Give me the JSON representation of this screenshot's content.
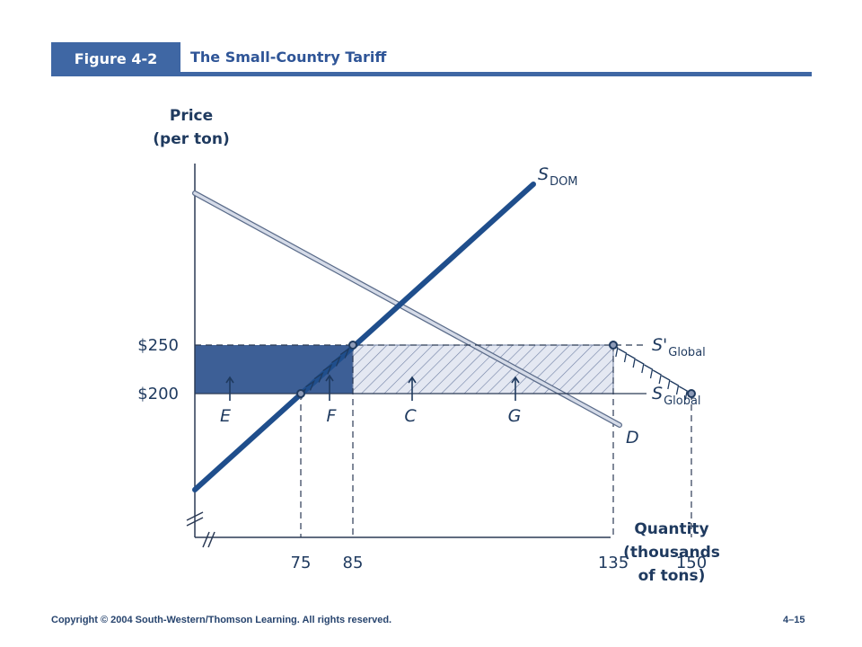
{
  "header": {
    "figure_label": "Figure 4-2",
    "title": "The Small-Country Tariff"
  },
  "footer": {
    "copyright": "Copyright © 2004 South-Western/Thomson  Learning. All rights reserved.",
    "page": "4–15"
  },
  "colors": {
    "header_blue": "#3f67a4",
    "supply_line": "#1f4e8c",
    "demand_line": "#c5cde0",
    "area_e": "#3d5f96",
    "text": "#1f3a5f"
  },
  "chart_data": {
    "type": "line",
    "ylabel_line1": "Price",
    "ylabel_line2": "(per ton)",
    "xlabel_line1": "Quantity",
    "xlabel_line2": "(thousands",
    "xlabel_line3": "of tons)",
    "x_ticks": [
      "75",
      "85",
      "135",
      "150"
    ],
    "x_tick_values": [
      75,
      85,
      135,
      150
    ],
    "y_ticks": [
      "$250",
      "$200"
    ],
    "y_tick_values": [
      250,
      200
    ],
    "axis_breaks": true,
    "series": [
      {
        "name": "S_DOM",
        "label_main": "S",
        "label_sub": "DOM",
        "x": [
          40,
          145
        ],
        "y": [
          110,
          315
        ]
      },
      {
        "name": "D",
        "label_main": "D",
        "x": [
          40,
          160
        ],
        "y": [
          355,
          165
        ]
      },
      {
        "name": "S'_Global",
        "label_main": "S'",
        "label_sub": "Global",
        "x": [
          40,
          160
        ],
        "y": [
          250,
          250
        ]
      },
      {
        "name": "S_Global",
        "label_main": "S",
        "label_sub": "Global",
        "x": [
          40,
          160
        ],
        "y": [
          200,
          200
        ]
      }
    ],
    "points": [
      {
        "x": 75,
        "y": 200
      },
      {
        "x": 85,
        "y": 250
      },
      {
        "x": 135,
        "y": 250
      },
      {
        "x": 150,
        "y": 200
      }
    ],
    "areas": [
      {
        "label": "E",
        "x_from": 40,
        "x_to": 85,
        "y_from": 200,
        "y_to": 250
      },
      {
        "label": "F",
        "x_from": 75,
        "x_to": 85,
        "y_from": 200,
        "y_to": 250
      },
      {
        "label": "C",
        "x_from": 85,
        "x_to": 135,
        "y_from": 200,
        "y_to": 250
      },
      {
        "label": "G",
        "x_from": 135,
        "x_to": 150,
        "y_from": 200,
        "y_to": 250
      }
    ]
  }
}
